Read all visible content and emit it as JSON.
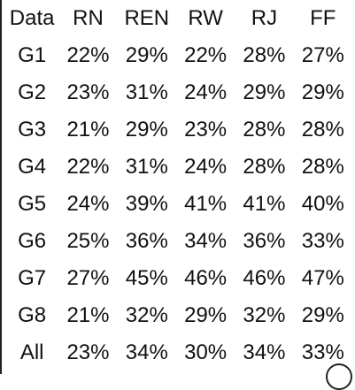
{
  "chart_data": {
    "type": "table",
    "header": {
      "label_column": "Data",
      "columns": [
        "RN",
        "REN",
        "RW",
        "RJ",
        "FF"
      ]
    },
    "rows": [
      {
        "label": "G1",
        "values": [
          "22%",
          "29%",
          "22%",
          "28%",
          "27%"
        ]
      },
      {
        "label": "G2",
        "values": [
          "23%",
          "31%",
          "24%",
          "29%",
          "29%"
        ]
      },
      {
        "label": "G3",
        "values": [
          "21%",
          "29%",
          "23%",
          "28%",
          "28%"
        ]
      },
      {
        "label": "G4",
        "values": [
          "22%",
          "31%",
          "24%",
          "28%",
          "28%"
        ]
      },
      {
        "label": "G5",
        "values": [
          "24%",
          "39%",
          "41%",
          "41%",
          "40%"
        ]
      },
      {
        "label": "G6",
        "values": [
          "25%",
          "36%",
          "34%",
          "36%",
          "33%"
        ]
      },
      {
        "label": "G7",
        "values": [
          "27%",
          "45%",
          "46%",
          "46%",
          "47%"
        ]
      },
      {
        "label": "G8",
        "values": [
          "21%",
          "32%",
          "29%",
          "32%",
          "29%"
        ]
      },
      {
        "label": "All",
        "values": [
          "23%",
          "34%",
          "30%",
          "34%",
          "33%"
        ]
      }
    ]
  }
}
